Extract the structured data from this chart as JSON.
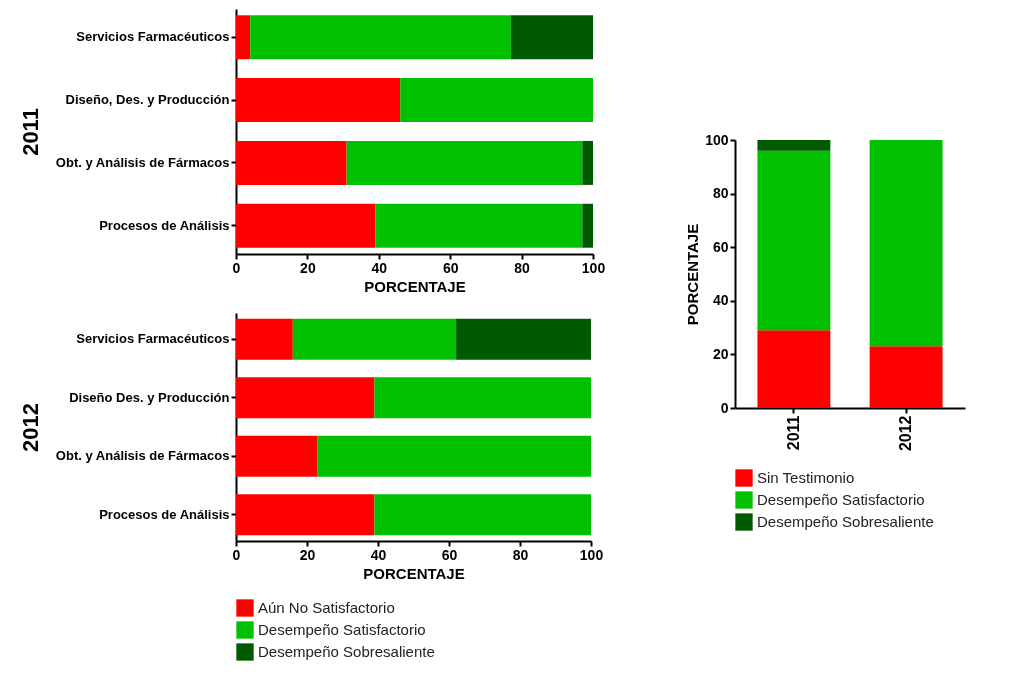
{
  "chart_data": [
    {
      "type": "bar",
      "orientation": "horizontal",
      "stacked": true,
      "ylabel": "2011",
      "xlabel": "PORCENTAJE",
      "categories": [
        "Servicios Farmacéuticos",
        "Diseño, Des. y Producción",
        "Obt. y Análisis de Fármacos",
        "Procesos de Análisis"
      ],
      "xlim": [
        0,
        100
      ],
      "xticks": [
        0,
        20,
        40,
        60,
        80,
        100
      ],
      "series": [
        {
          "color": "#ff0000",
          "values": [
            4,
            46,
            31,
            39
          ]
        },
        {
          "color": "#00c000",
          "values": [
            73,
            54,
            66,
            58
          ]
        },
        {
          "color": "#005a00",
          "values": [
            23,
            null,
            3,
            3
          ]
        }
      ]
    },
    {
      "type": "bar",
      "orientation": "horizontal",
      "stacked": true,
      "ylabel": "2012",
      "xlabel": "PORCENTAJE",
      "legend": "bottom",
      "categories": [
        "Servicios Farmacéuticos",
        "Diseño Des. y Producción",
        "Obt. y Análisis de Fármacos",
        "Procesos de Análisis"
      ],
      "xlim": [
        0,
        100
      ],
      "xticks": [
        0,
        20,
        40,
        60,
        80,
        100
      ],
      "series": [
        {
          "name": "Aún No Satisfactorio",
          "color": "#ff0000",
          "values": [
            16,
            39,
            23,
            39
          ]
        },
        {
          "name": "Desempeño Satisfactorio",
          "color": "#00c000",
          "values": [
            46,
            61,
            77,
            61
          ]
        },
        {
          "name": "Desempeño Sobresaliente",
          "color": "#005a00",
          "values": [
            38,
            null,
            null,
            null
          ]
        }
      ]
    },
    {
      "type": "bar",
      "stacked": true,
      "ylabel": "PORCENTAJE",
      "legend": "bottom",
      "categories": [
        "2011",
        "2012"
      ],
      "ylim": [
        0,
        100
      ],
      "yticks": [
        0,
        20,
        40,
        60,
        80,
        100
      ],
      "series": [
        {
          "name": "Sin Testimonio",
          "color": "#ff0000",
          "values": [
            29,
            23
          ]
        },
        {
          "name": "Desempeño Satisfactorio",
          "color": "#00c000",
          "values": [
            67,
            77
          ]
        },
        {
          "name": "Desempeño Sobresaliente",
          "color": "#005a00",
          "values": [
            4,
            null
          ]
        }
      ]
    }
  ]
}
